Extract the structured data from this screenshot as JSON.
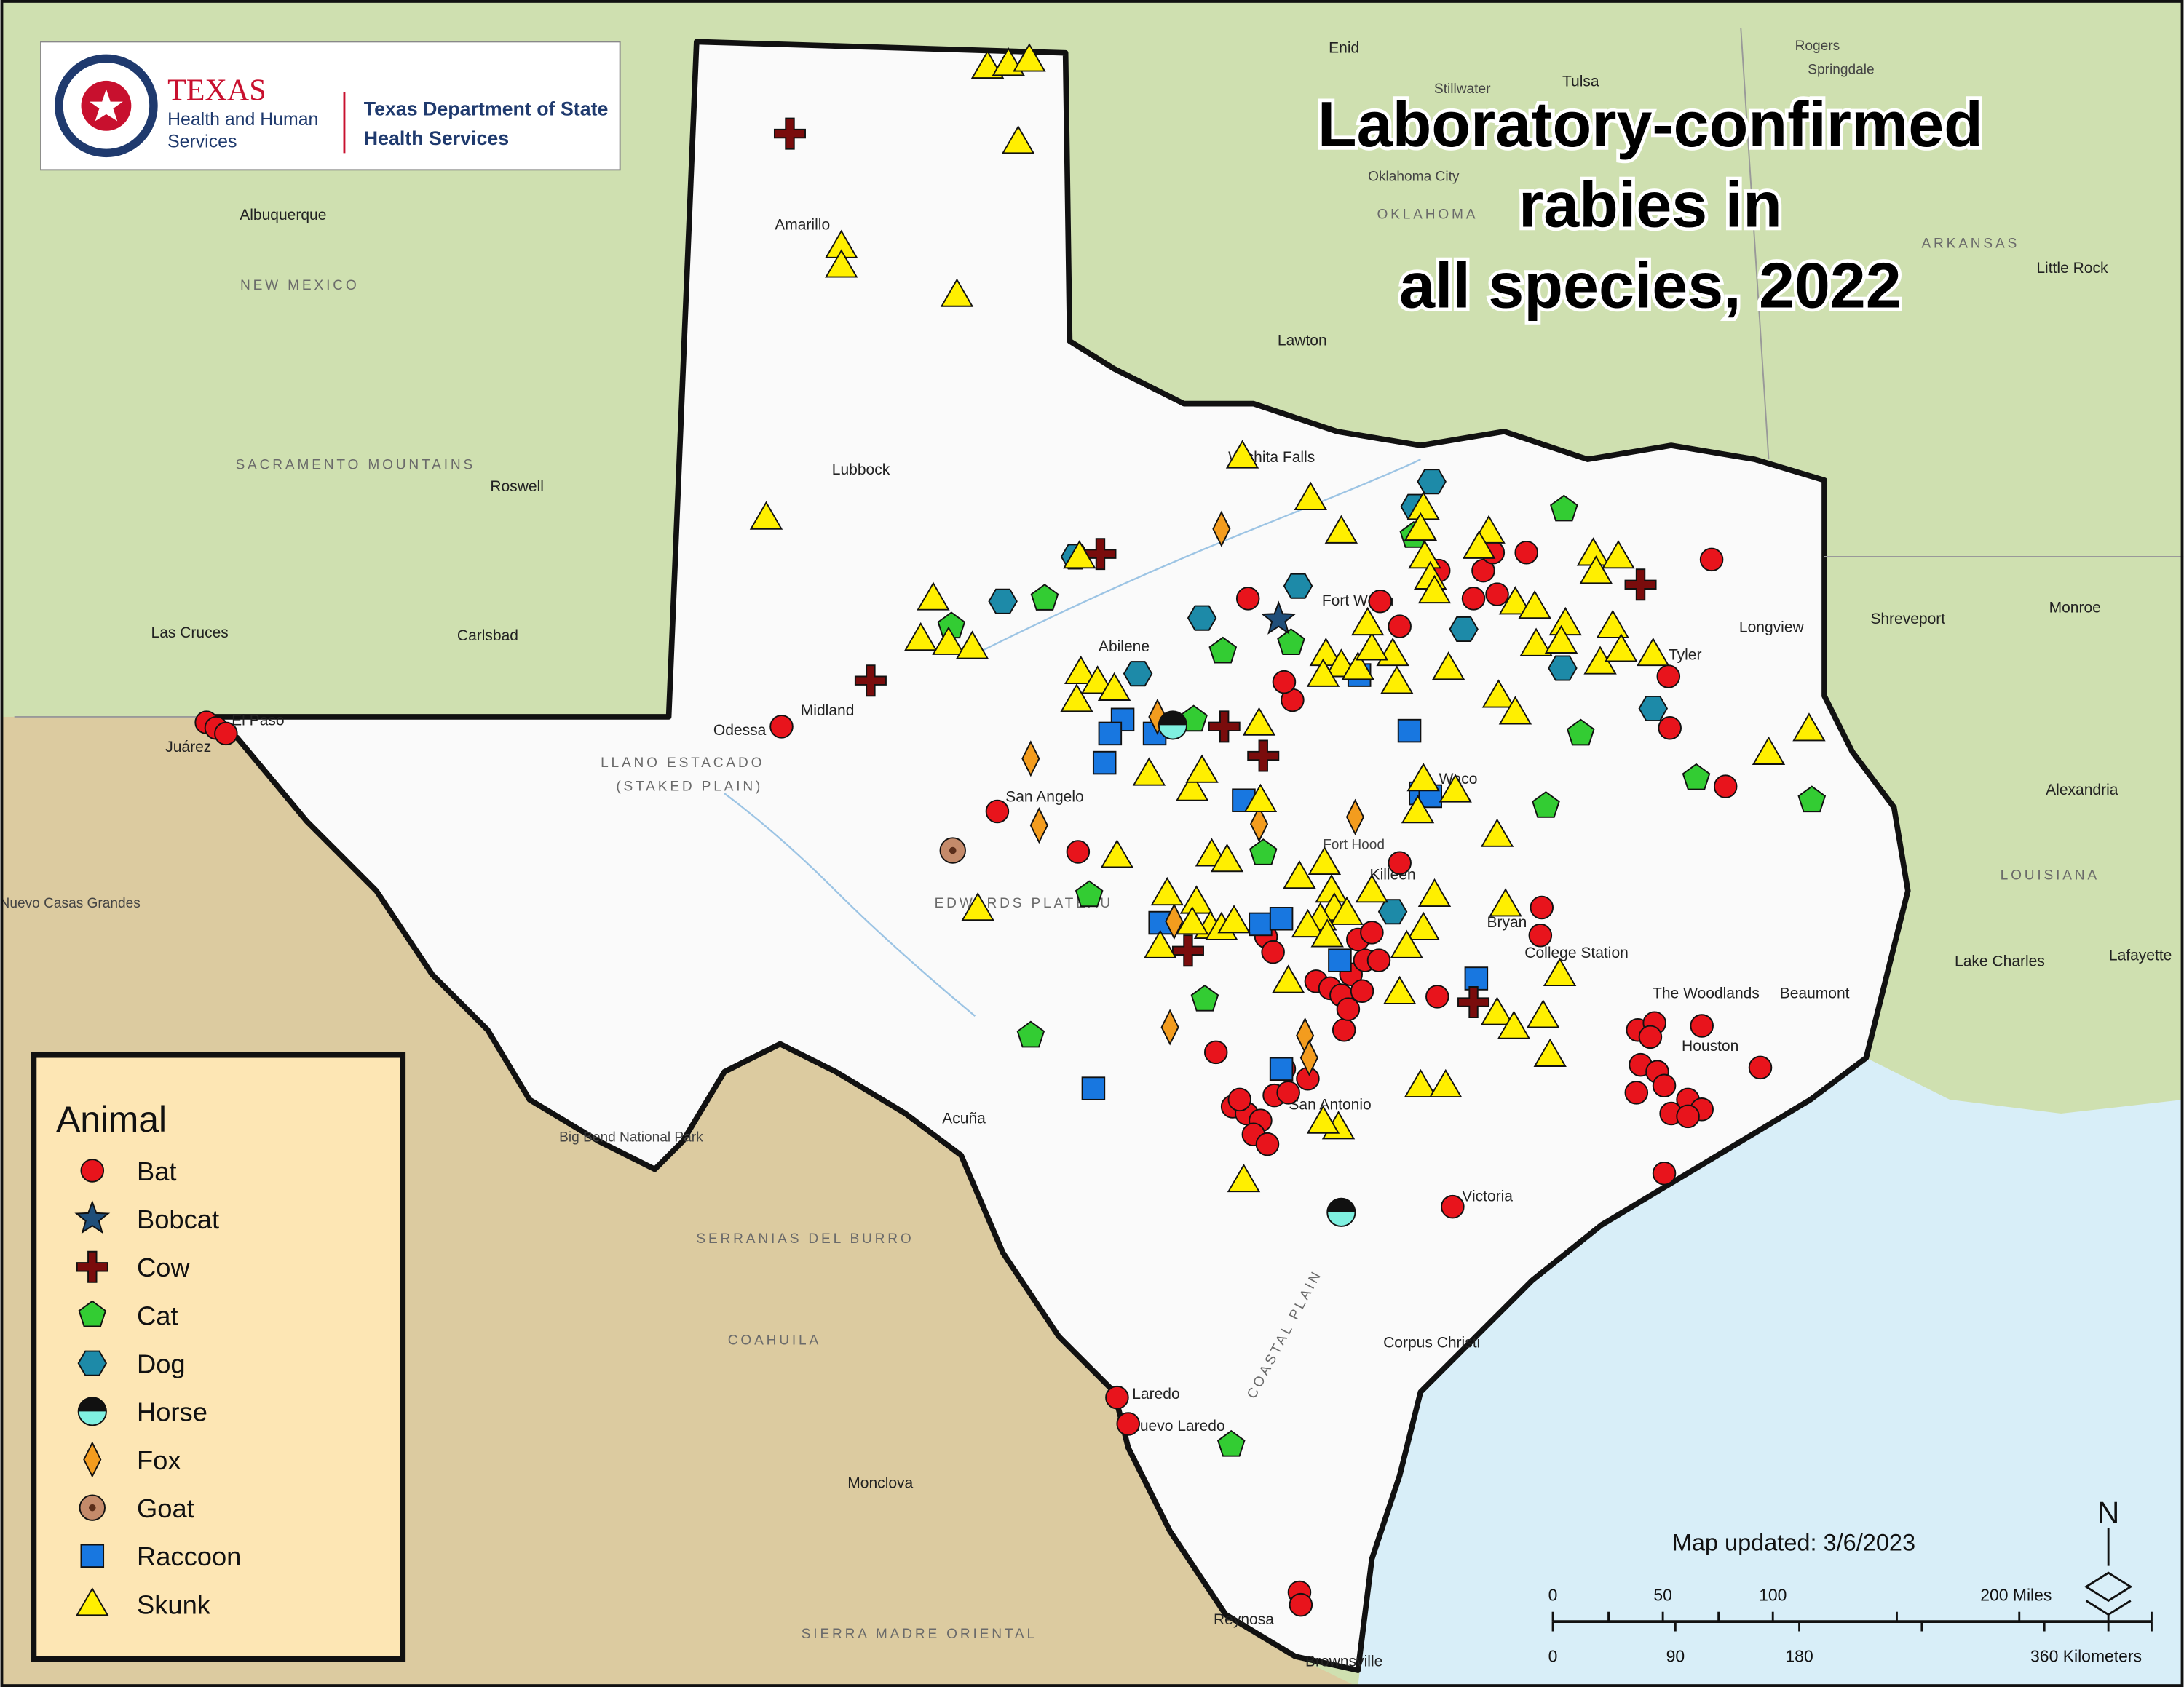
{
  "header": {
    "agency": "TEXAS",
    "agency_sub": [
      "Health and Human",
      "Services"
    ],
    "department": [
      "Texas Department of State",
      "Health Services"
    ]
  },
  "title": [
    "Laboratory-confirmed",
    "rabies in",
    "all species, 2022"
  ],
  "legend": {
    "title": "Animal",
    "items": [
      "Bat",
      "Bobcat",
      "Cow",
      "Cat",
      "Dog",
      "Horse",
      "Fox",
      "Goat",
      "Raccoon",
      "Skunk"
    ]
  },
  "map_updated": "Map updated: 3/6/2023",
  "scale": {
    "miles": [
      "0",
      "50",
      "100",
      "200 Miles"
    ],
    "kilometers": [
      "0",
      "90",
      "180",
      "360 Kilometers"
    ]
  },
  "north": "N",
  "map_labels": [
    "Amarillo",
    "Lubbock",
    "Midland",
    "Odessa",
    "Abilene",
    "San Angelo",
    "Fort Worth",
    "Wichita Falls",
    "Tyler",
    "Longview",
    "Shreveport",
    "Monroe",
    "Waco",
    "Killeen",
    "Fort Hood",
    "Bryan",
    "College Station",
    "The Woodlands",
    "Houston",
    "Beaumont",
    "Lake Charles",
    "Lafayette",
    "Alexandria",
    "LOUISIANA",
    "San Antonio",
    "Victoria",
    "Corpus Christi",
    "Laredo",
    "Nuevo Laredo",
    "Reynosa",
    "Brownsville",
    "Acuña",
    "Monclova",
    "COAHUILA",
    "SERRANIAS DEL BURRO",
    "SIERRA MADRE ORIENTAL",
    "Nuevo Casas Grandes",
    "Juárez",
    "El Paso",
    "Las Cruces",
    "Carlsbad",
    "Roswell",
    "Albuquerque",
    "NEW MEXICO",
    "SACRAMENTO MOUNTAINS",
    "Oklahoma City",
    "OKLAHOMA",
    "Lawton",
    "Tulsa",
    "ARKANSAS",
    "Little Rock",
    "Enid",
    "Stillwater",
    "Rogers",
    "Springdale",
    "LLANO ESTACADO",
    "(STAKED PLAIN)",
    "EDWARDS PLATEAU",
    "COASTAL PLAIN",
    "Big Bend National Park"
  ]
}
